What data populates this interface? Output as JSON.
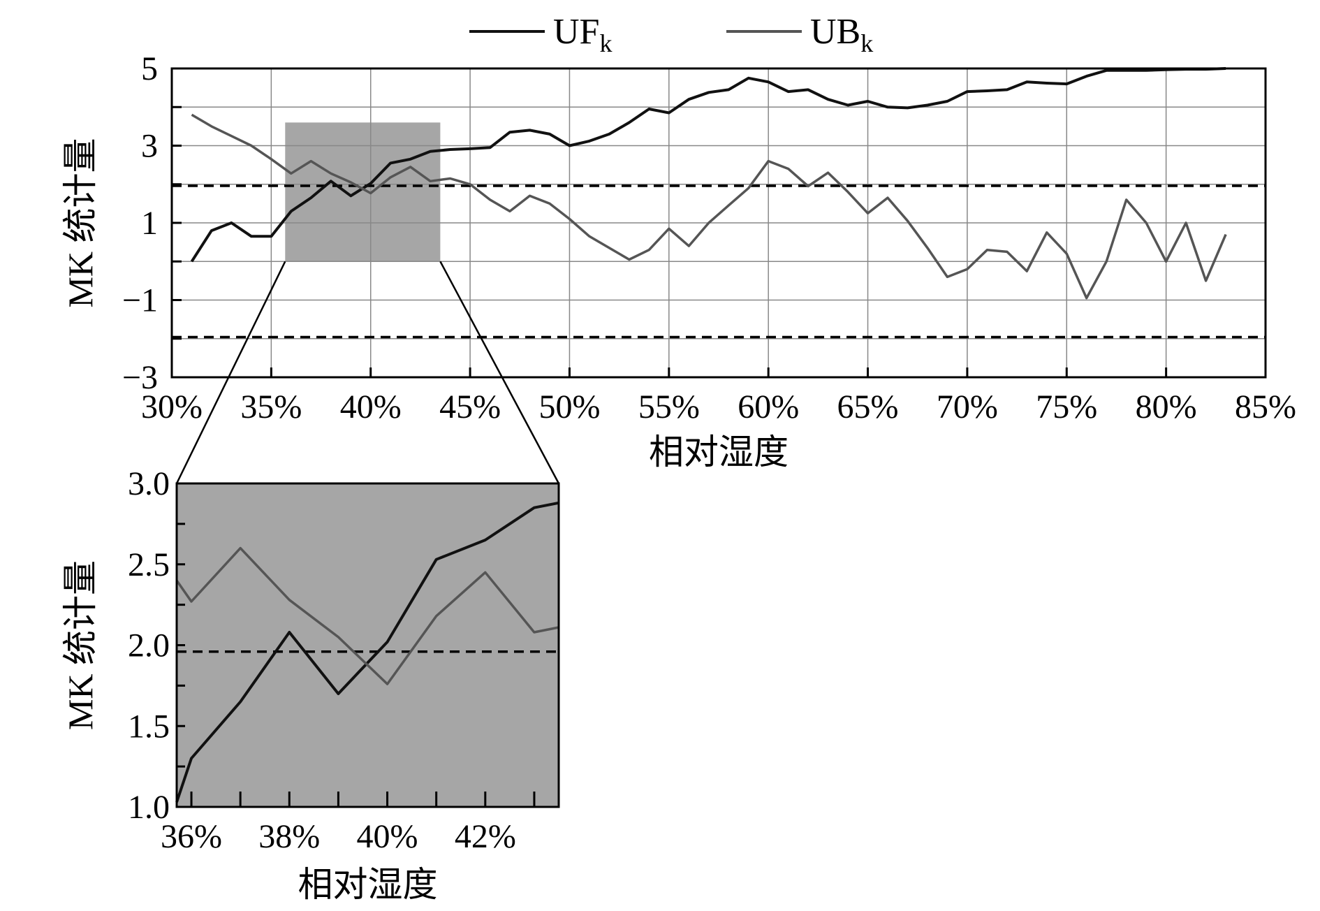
{
  "colors": {
    "uf": "#111111",
    "ub": "#555555",
    "zoom_fill": "#a6a6a6",
    "grid": "#888888"
  },
  "legend": {
    "uf": {
      "base": "UF",
      "sub": "k"
    },
    "ub": {
      "base": "UB",
      "sub": "k"
    }
  },
  "chart_data": [
    {
      "id": "main",
      "type": "line",
      "xlabel": "相对湿度",
      "ylabel": "MK 统计量",
      "xlim": [
        30,
        85
      ],
      "ylim": [
        -3,
        5
      ],
      "x_ticks": [
        "30%",
        "35%",
        "40%",
        "45%",
        "50%",
        "55%",
        "60%",
        "65%",
        "70%",
        "75%",
        "80%",
        "85%"
      ],
      "y_ticks": [
        "5",
        "3",
        "1",
        "−1",
        "−3"
      ],
      "grid": true,
      "significance_lines": [
        1.96,
        -1.96
      ],
      "highlight_region": {
        "x": [
          35.7,
          43.5
        ],
        "y": [
          0,
          3.6
        ]
      },
      "x": [
        31,
        32,
        33,
        34,
        35,
        36,
        37,
        38,
        39,
        40,
        41,
        42,
        43,
        44,
        45,
        46,
        47,
        48,
        49,
        50,
        51,
        52,
        53,
        54,
        55,
        56,
        57,
        58,
        59,
        60,
        61,
        62,
        63,
        64,
        65,
        66,
        67,
        68,
        69,
        70,
        71,
        72,
        73,
        74,
        75,
        76,
        77,
        78,
        79,
        80,
        81,
        82,
        83
      ],
      "series": [
        {
          "name": "UFk",
          "values": [
            0.0,
            0.8,
            1.0,
            0.65,
            0.65,
            1.3,
            1.65,
            2.08,
            1.7,
            2.02,
            2.55,
            2.65,
            2.85,
            2.9,
            2.92,
            2.95,
            3.35,
            3.4,
            3.3,
            3.0,
            3.12,
            3.3,
            3.6,
            3.95,
            3.85,
            4.2,
            4.38,
            4.45,
            4.75,
            4.65,
            4.4,
            4.45,
            4.2,
            4.05,
            4.15,
            4.0,
            3.98,
            4.05,
            4.15,
            4.4,
            4.42,
            4.45,
            4.65,
            4.62,
            4.6,
            4.8,
            4.95,
            4.95,
            4.95,
            4.97,
            4.98,
            4.98,
            5.0
          ]
        },
        {
          "name": "UBk",
          "values": [
            3.8,
            3.5,
            3.25,
            3.0,
            2.65,
            2.28,
            2.6,
            2.28,
            2.05,
            1.77,
            2.18,
            2.45,
            2.08,
            2.15,
            2.0,
            1.6,
            1.3,
            1.7,
            1.5,
            1.1,
            0.65,
            0.35,
            0.05,
            0.3,
            0.85,
            0.4,
            1.0,
            1.45,
            1.9,
            2.6,
            2.4,
            1.95,
            2.3,
            1.8,
            1.25,
            1.65,
            1.05,
            0.35,
            -0.4,
            -0.2,
            0.3,
            0.25,
            -0.25,
            0.75,
            0.2,
            -0.95,
            0.0,
            1.6,
            1.0,
            0.0,
            1.0,
            -0.5,
            0.7
          ]
        }
      ]
    },
    {
      "id": "inset",
      "type": "line",
      "xlabel": "相对湿度",
      "ylabel": "MK 统计量",
      "xlim": [
        35.7,
        43.5
      ],
      "ylim": [
        1.0,
        3.0
      ],
      "x_ticks": [
        "36%",
        "38%",
        "40%",
        "42%"
      ],
      "y_ticks": [
        "3.0",
        "2.5",
        "2.0",
        "1.5",
        "1.0"
      ],
      "significance_lines": [
        1.96
      ],
      "x": [
        35.7,
        36,
        37,
        38,
        39,
        40,
        41,
        42,
        43,
        43.5
      ],
      "series": [
        {
          "name": "UFk",
          "values": [
            1.03,
            1.3,
            1.65,
            2.08,
            1.7,
            2.02,
            2.53,
            2.65,
            2.85,
            2.88
          ]
        },
        {
          "name": "UBk",
          "values": [
            2.4,
            2.27,
            2.6,
            2.28,
            2.05,
            1.76,
            2.18,
            2.45,
            2.08,
            2.11
          ]
        }
      ]
    }
  ]
}
